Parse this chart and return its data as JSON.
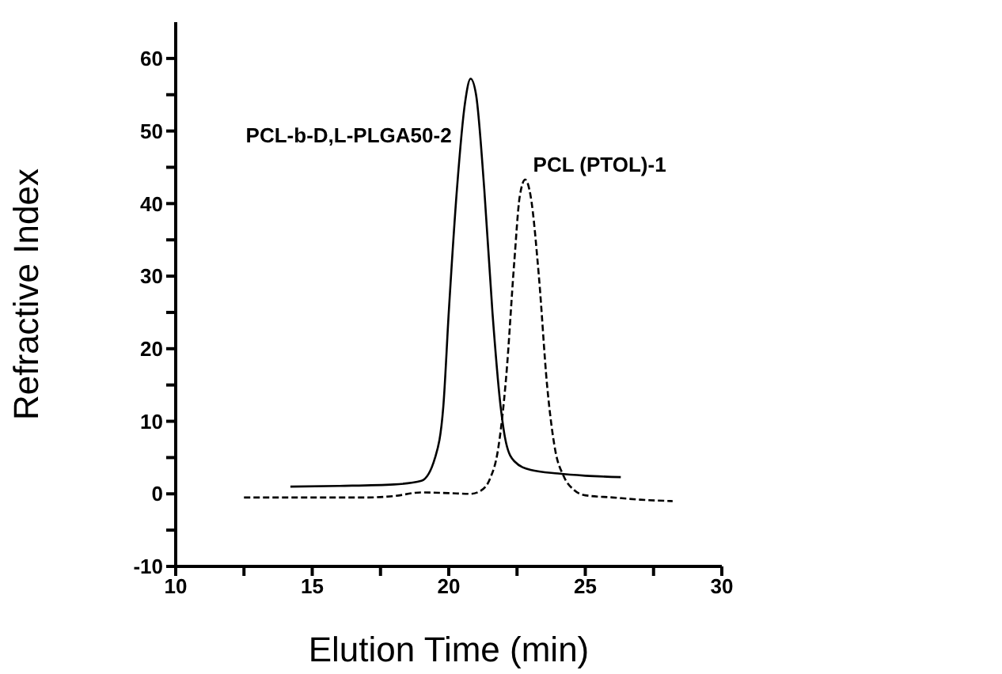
{
  "chart_data": {
    "type": "line",
    "xlabel": "Elution Time (min)",
    "ylabel": "Refractive Index",
    "xlim": [
      10,
      30
    ],
    "xticks": [
      10,
      {
        "value": 12.5,
        "label": null
      },
      15,
      {
        "value": 17.5,
        "label": null
      },
      20,
      {
        "value": 22.5,
        "label": null
      },
      25,
      {
        "value": 27.5,
        "label": null
      },
      30
    ],
    "ylim": [
      -10,
      65
    ],
    "yticks": [
      -10,
      {
        "value": -5,
        "label": null
      },
      0,
      {
        "value": 5,
        "label": null
      },
      10,
      {
        "value": 15,
        "label": null
      },
      20,
      {
        "value": 25,
        "label": null
      },
      30,
      {
        "value": 35,
        "label": null
      },
      40,
      {
        "value": 45,
        "label": null
      },
      50,
      {
        "value": 55,
        "label": null
      },
      60
    ],
    "grid": false,
    "legend": false,
    "marker": "none",
    "series": [
      {
        "name": "PCL-b-D,L-PLGA50-2",
        "color": "#000000",
        "line_style": "solid",
        "x": [
          14.2,
          16,
          18,
          19,
          19.5,
          19.8,
          20,
          20.3,
          20.6,
          20.8,
          21,
          21.3,
          21.6,
          21.9,
          22.1,
          22.4,
          23,
          24,
          25,
          26.3
        ],
        "values": [
          1,
          1.1,
          1.3,
          1.8,
          5,
          12,
          25,
          42,
          54,
          57.2,
          55,
          42,
          25,
          12,
          7,
          4.5,
          3.3,
          2.8,
          2.5,
          2.3
        ]
      },
      {
        "name": "PCL (PTOL)-1",
        "color": "#000000",
        "line_style": "dashed",
        "x": [
          12.5,
          15,
          17,
          18,
          19,
          20,
          20.8,
          21.2,
          21.5,
          21.8,
          22.1,
          22.4,
          22.6,
          22.8,
          23,
          23.3,
          23.6,
          23.9,
          24.2,
          24.6,
          25,
          26,
          27,
          28.2
        ],
        "values": [
          -0.5,
          -0.5,
          -0.5,
          -0.3,
          0.2,
          0.1,
          0,
          0.5,
          2,
          6,
          16,
          32,
          41,
          43.3,
          41,
          30,
          15,
          6,
          2.5,
          0.5,
          -0.2,
          -0.5,
          -0.8,
          -1
        ]
      }
    ]
  }
}
